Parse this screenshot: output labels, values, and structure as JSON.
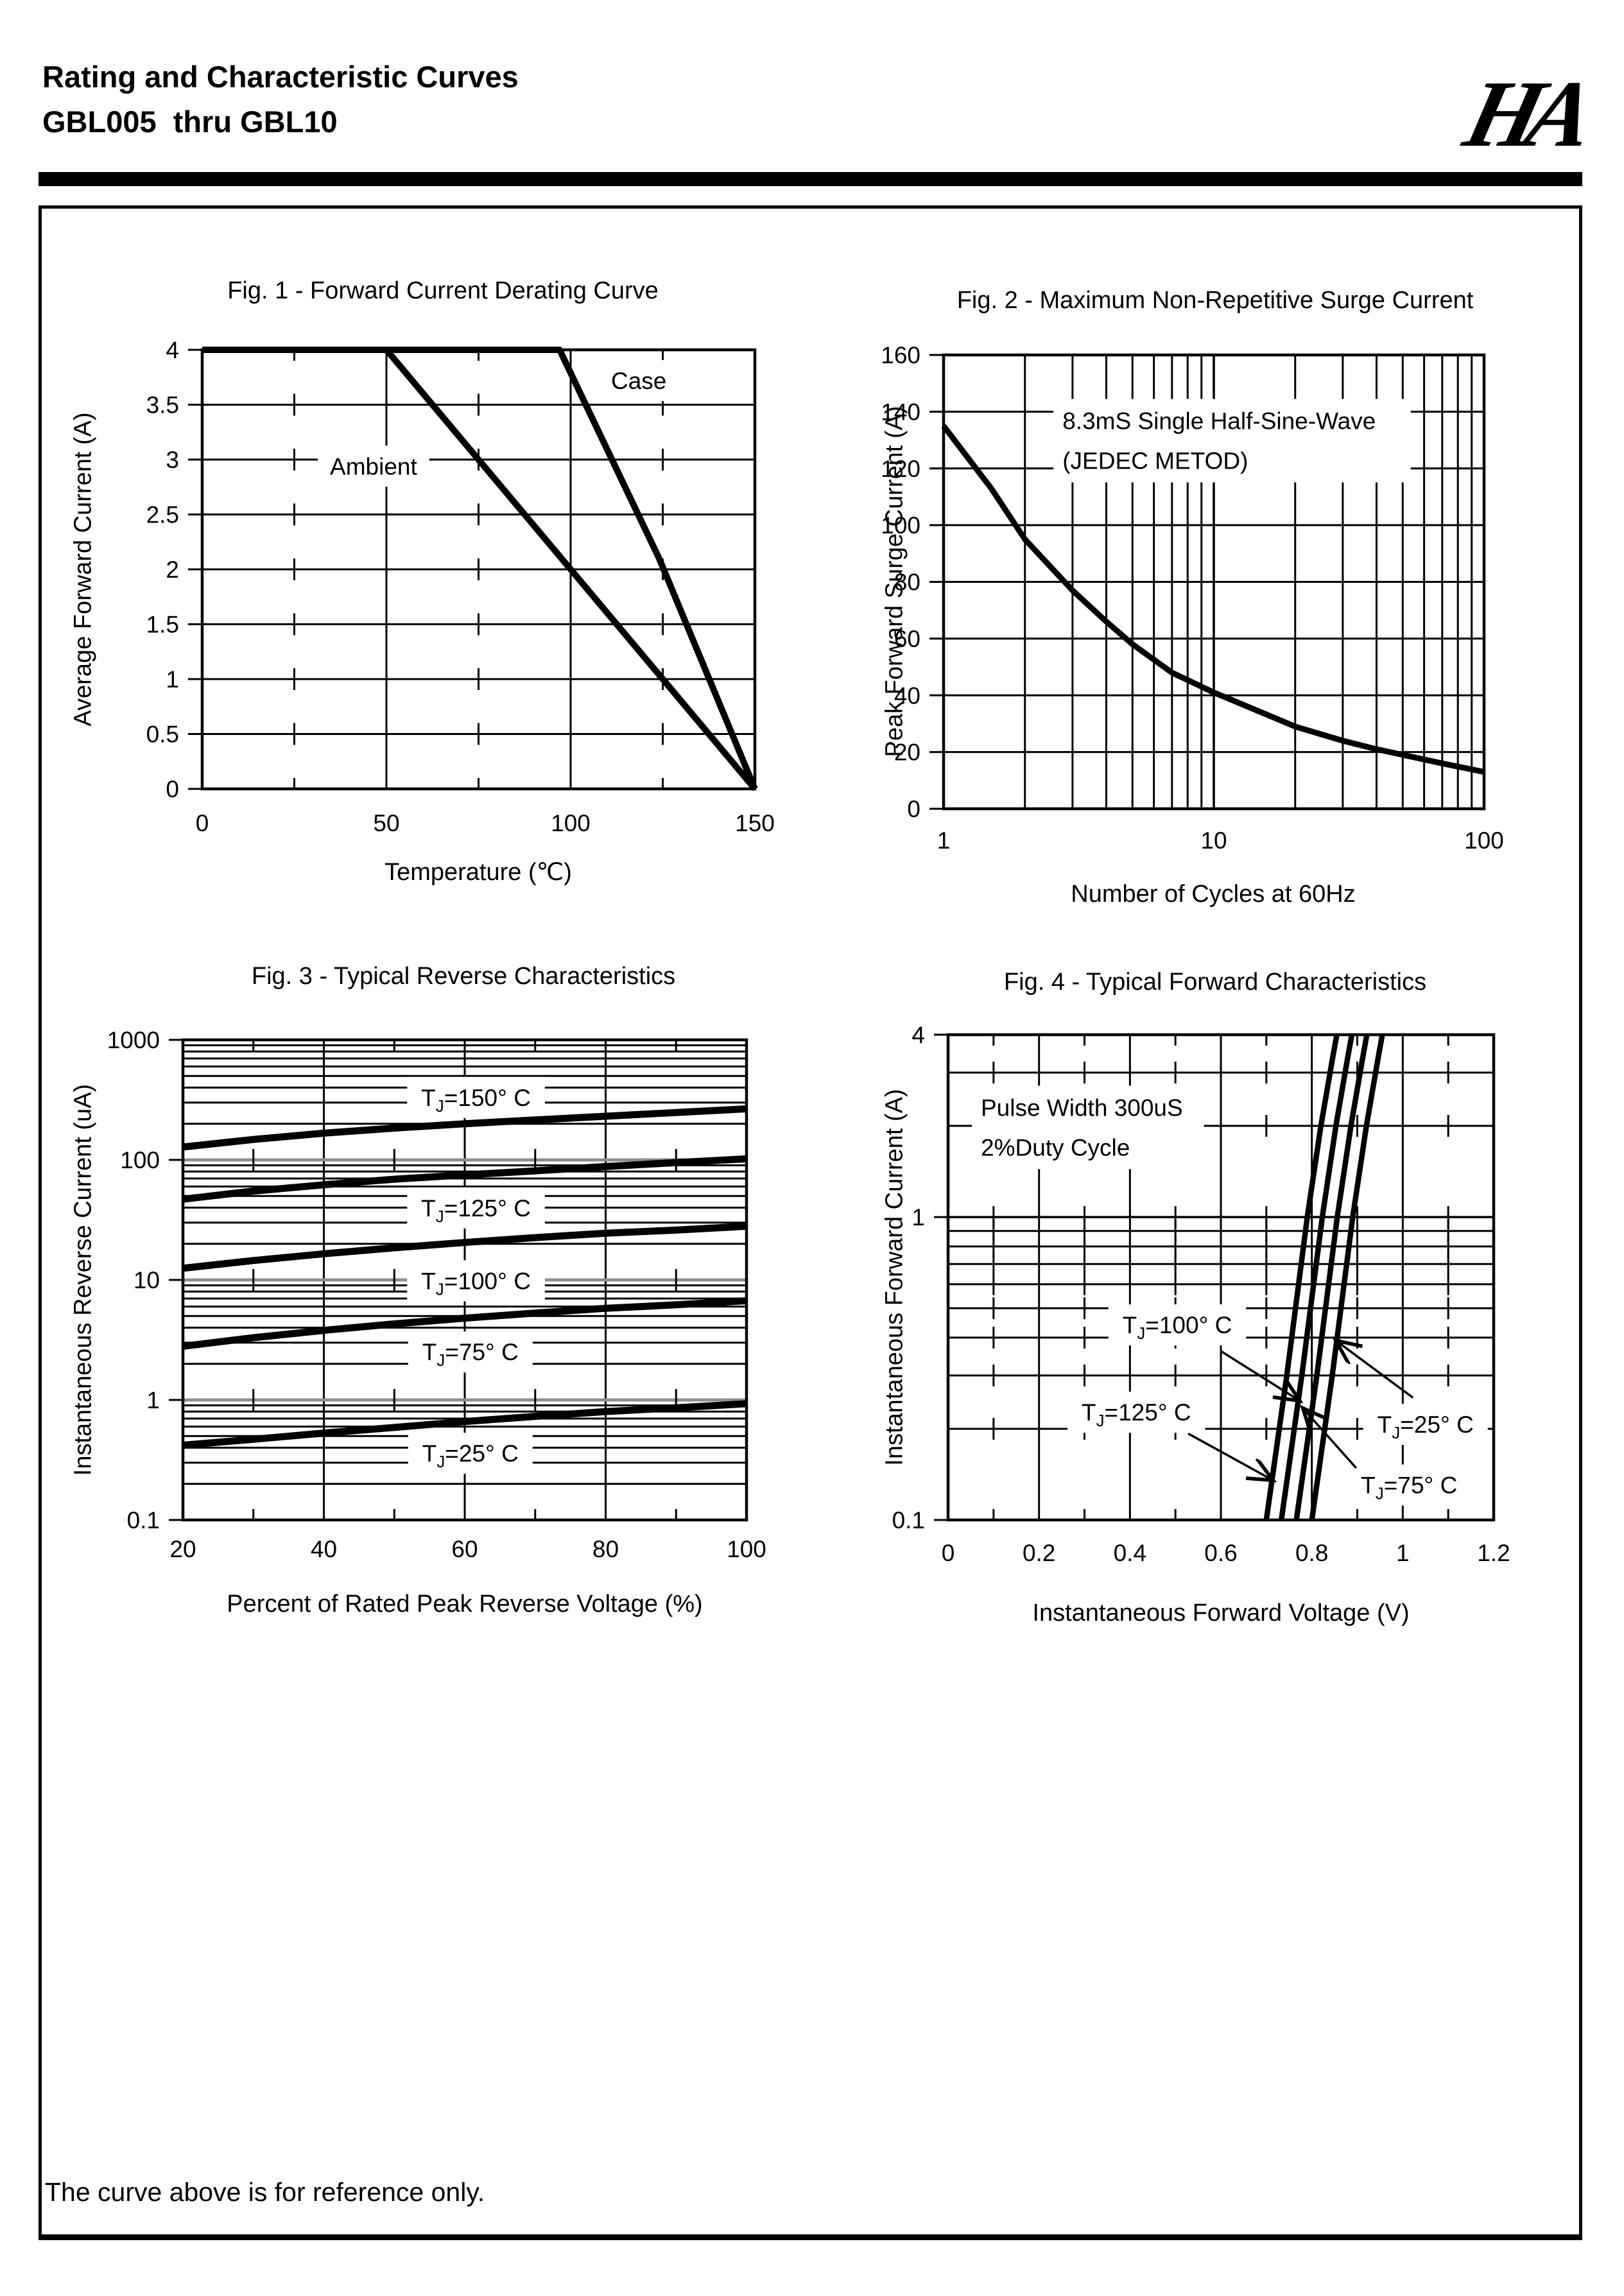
{
  "header": {
    "title_line1": "Rating and Characteristic Curves",
    "title_line2": "GBL005  thru GBL10",
    "logo_text": "HA"
  },
  "footer": {
    "note": "The curve above is for reference only."
  },
  "chart_data": [
    {
      "type": "line",
      "title": "Fig. 1 - Forward Current Derating Curve",
      "xlabel": "Temperature (℃)",
      "ylabel": "Average Forward Current (A)",
      "x": {
        "scale": "linear",
        "min": 0,
        "max": 150,
        "tick_labels": [
          0,
          50,
          100,
          150
        ],
        "grid": [
          50,
          100
        ],
        "minor_dashes": [
          25,
          75,
          125
        ]
      },
      "y": {
        "scale": "linear",
        "min": 0,
        "max": 4,
        "tick_labels": [
          4,
          3.5,
          3,
          2.5,
          2,
          1.5,
          1,
          0.5,
          0
        ],
        "grid": [
          0.5,
          1,
          1.5,
          2,
          2.5,
          3,
          3.5
        ]
      },
      "series": [
        {
          "name": "Ambient",
          "points": [
            [
              0,
              4
            ],
            [
              50,
              4
            ],
            [
              100,
              2
            ],
            [
              150,
              0
            ]
          ]
        },
        {
          "name": "Case",
          "points": [
            [
              0,
              4
            ],
            [
              97,
              4
            ],
            [
              124,
              2.1
            ],
            [
              150,
              0
            ]
          ]
        }
      ],
      "labels": [
        {
          "text": "Ambient",
          "fx": 0.31,
          "fy": 0.265
        },
        {
          "text": "Case",
          "fx": 0.79,
          "fy": 0.07
        }
      ]
    },
    {
      "type": "line",
      "title": "Fig. 2 - Maximum Non-Repetitive Surge Current",
      "xlabel": "Number of Cycles at 60Hz",
      "ylabel": "Peak Forward Surge Current (A)",
      "x": {
        "scale": "log",
        "min": 1,
        "max": 100,
        "tick_labels": [
          1,
          10,
          100
        ]
      },
      "y": {
        "scale": "linear",
        "min": 0,
        "max": 160,
        "tick_labels": [
          160,
          140,
          120,
          100,
          80,
          60,
          40,
          20,
          0
        ],
        "grid": [
          20,
          40,
          60,
          80,
          100,
          120,
          140
        ]
      },
      "series": [
        {
          "name": "surge-current",
          "points": [
            [
              1,
              135
            ],
            [
              1.5,
              113
            ],
            [
              2,
              95
            ],
            [
              3,
              77
            ],
            [
              4,
              66
            ],
            [
              5,
              58
            ],
            [
              7,
              48
            ],
            [
              10,
              41
            ],
            [
              15,
              34
            ],
            [
              20,
              29
            ],
            [
              30,
              24
            ],
            [
              40,
              21
            ],
            [
              50,
              19
            ],
            [
              70,
              16
            ],
            [
              100,
              13
            ]
          ]
        }
      ],
      "annotation": {
        "lines": [
          "8.3mS Single Half-Sine-Wave",
          "(JEDEC METOD)"
        ],
        "fx": 0.22,
        "fy": 0.145
      }
    },
    {
      "type": "line",
      "title": "Fig. 3 - Typical Reverse Characteristics",
      "xlabel": "Percent of Rated Peak Reverse Voltage (%)",
      "ylabel": "Instantaneous Reverse Current (uA)",
      "x": {
        "scale": "linear",
        "min": 20,
        "max": 100,
        "tick_labels": [
          20,
          40,
          60,
          80,
          100
        ],
        "grid": [
          40,
          60,
          80
        ],
        "minor_dashes": [
          30,
          50,
          70,
          90
        ]
      },
      "y": {
        "scale": "log",
        "min": 0.1,
        "max": 1000,
        "tick_labels": [
          1000,
          100,
          10,
          1,
          0.1
        ],
        "gray_decades": true
      },
      "series": [
        {
          "name": "TJ=150C",
          "points": [
            [
              20,
              128
            ],
            [
              30,
              148
            ],
            [
              40,
              167
            ],
            [
              50,
              184
            ],
            [
              60,
              200
            ],
            [
              70,
              215
            ],
            [
              80,
              231
            ],
            [
              90,
              248
            ],
            [
              100,
              266
            ]
          ]
        },
        {
          "name": "TJ=125C",
          "points": [
            [
              20,
              47
            ],
            [
              30,
              55
            ],
            [
              40,
              62
            ],
            [
              50,
              69
            ],
            [
              60,
              75
            ],
            [
              70,
              81
            ],
            [
              80,
              88
            ],
            [
              90,
              95
            ],
            [
              100,
              102
            ]
          ]
        },
        {
          "name": "TJ=100C",
          "points": [
            [
              20,
              12.5
            ],
            [
              30,
              14.5
            ],
            [
              40,
              16.5
            ],
            [
              50,
              18.5
            ],
            [
              60,
              20.5
            ],
            [
              70,
              22.5
            ],
            [
              80,
              24.5
            ],
            [
              90,
              26
            ],
            [
              100,
              28
            ]
          ]
        },
        {
          "name": "TJ=75C",
          "points": [
            [
              20,
              2.8
            ],
            [
              30,
              3.3
            ],
            [
              40,
              3.8
            ],
            [
              50,
              4.3
            ],
            [
              60,
              4.8
            ],
            [
              70,
              5.3
            ],
            [
              80,
              5.8
            ],
            [
              90,
              6.2
            ],
            [
              100,
              6.7
            ]
          ]
        },
        {
          "name": "TJ=25C",
          "points": [
            [
              20,
              0.42
            ],
            [
              30,
              0.47
            ],
            [
              40,
              0.53
            ],
            [
              50,
              0.59
            ],
            [
              60,
              0.66
            ],
            [
              70,
              0.73
            ],
            [
              80,
              0.8
            ],
            [
              90,
              0.86
            ],
            [
              100,
              0.93
            ]
          ]
        }
      ],
      "labels": [
        {
          "text": "TJ=150° C",
          "fx": 0.52,
          "fy": 0.12,
          "sub": true
        },
        {
          "text": "TJ=125° C",
          "fx": 0.52,
          "fy": 0.35,
          "sub": true
        },
        {
          "text": "TJ=100° C",
          "fx": 0.52,
          "fy": 0.502,
          "sub": true
        },
        {
          "text": "TJ=75° C",
          "fx": 0.51,
          "fy": 0.65,
          "sub": true
        },
        {
          "text": "TJ=25° C",
          "fx": 0.51,
          "fy": 0.861,
          "sub": true
        }
      ]
    },
    {
      "type": "line",
      "title": "Fig. 4 - Typical Forward Characteristics",
      "xlabel": "Instantaneous Forward Voltage (V)",
      "ylabel": "Instantaneous Forward Current (A)",
      "x": {
        "scale": "linear",
        "min": 0,
        "max": 1.2,
        "tick_labels": [
          0,
          0.2,
          0.4,
          0.6,
          0.8,
          1,
          1.2
        ],
        "grid": [
          0.2,
          0.4,
          0.6,
          0.8,
          1
        ],
        "minor_dashes": [
          0.1,
          0.3,
          0.5,
          0.7,
          0.9,
          1.1
        ]
      },
      "y": {
        "scale": "log",
        "min": 0.1,
        "max": 4,
        "tick_labels": [
          4,
          1,
          0.1
        ]
      },
      "series": [
        {
          "name": "TJ=125C",
          "points": [
            [
              0.7,
              0.1
            ],
            [
              0.745,
              0.3
            ],
            [
              0.79,
              1.0
            ],
            [
              0.82,
              2.0
            ],
            [
              0.845,
              3.3
            ],
            [
              0.855,
              4.0
            ]
          ]
        },
        {
          "name": "TJ=100C",
          "points": [
            [
              0.733,
              0.1
            ],
            [
              0.778,
              0.3
            ],
            [
              0.823,
              1.0
            ],
            [
              0.853,
              2.0
            ],
            [
              0.878,
              3.3
            ],
            [
              0.888,
              4.0
            ]
          ]
        },
        {
          "name": "TJ=75C",
          "points": [
            [
              0.766,
              0.1
            ],
            [
              0.811,
              0.3
            ],
            [
              0.856,
              1.0
            ],
            [
              0.886,
              2.0
            ],
            [
              0.911,
              3.3
            ],
            [
              0.921,
              4.0
            ]
          ]
        },
        {
          "name": "TJ=25C",
          "points": [
            [
              0.8,
              0.1
            ],
            [
              0.845,
              0.3
            ],
            [
              0.89,
              1.0
            ],
            [
              0.92,
              2.0
            ],
            [
              0.945,
              3.3
            ],
            [
              0.955,
              4.0
            ]
          ]
        }
      ],
      "annotation": {
        "lines": [
          "Pulse Width 300uS",
          "2%Duty Cycle"
        ],
        "fx": 0.06,
        "fy": 0.15
      },
      "labels": [
        {
          "text": "TJ=100° C",
          "fx": 0.42,
          "fy": 0.598,
          "sub": true
        },
        {
          "text": "TJ=25° C",
          "fx": 0.875,
          "fy": 0.803,
          "sub": true
        },
        {
          "text": "TJ=125° C",
          "fx": 0.345,
          "fy": 0.778,
          "sub": true
        },
        {
          "text": "TJ=75° C",
          "fx": 0.845,
          "fy": 0.928,
          "sub": true
        }
      ],
      "arrows": [
        {
          "from": [
            0.5,
            0.652
          ],
          "to": [
            0.641,
            0.752
          ]
        },
        {
          "from": [
            0.852,
            0.748
          ],
          "to": [
            0.714,
            0.633
          ]
        },
        {
          "from": [
            0.44,
            0.822
          ],
          "to": [
            0.592,
            0.916
          ]
        },
        {
          "from": [
            0.748,
            0.893
          ],
          "to": [
            0.653,
            0.773
          ]
        }
      ]
    }
  ]
}
